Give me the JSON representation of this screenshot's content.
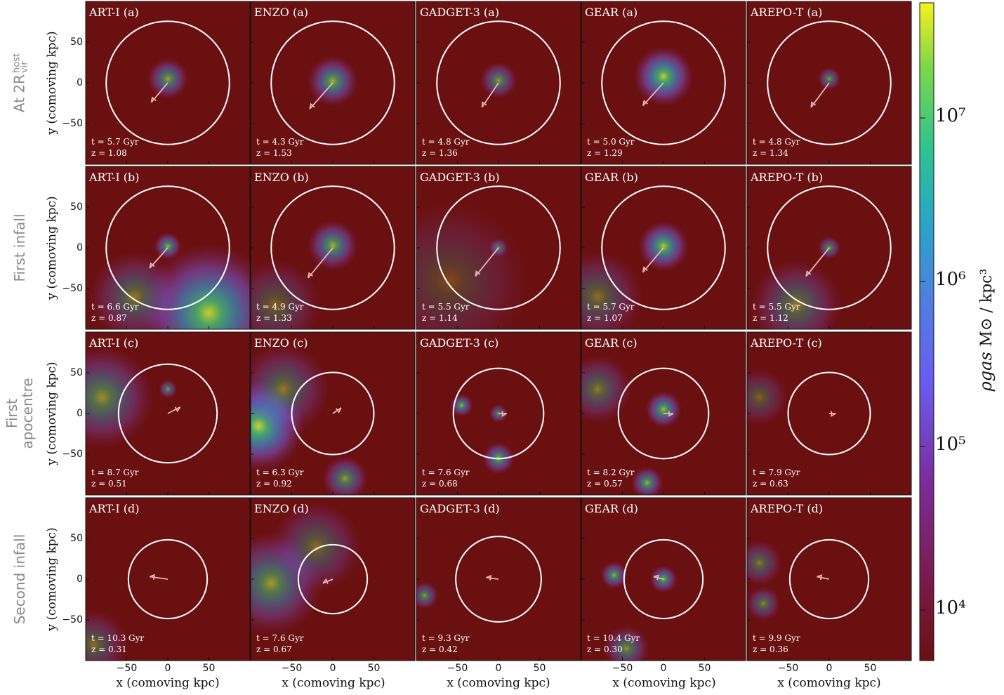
{
  "figure": {
    "codes": [
      "ART-I",
      "ENZO",
      "GADGET-3",
      "GEAR",
      "AREPO-T"
    ],
    "rows": [
      {
        "key": "a",
        "label": "At  2R",
        "label_sup": "host",
        "label_sub": "vir"
      },
      {
        "key": "b",
        "label": "First infall"
      },
      {
        "key": "c",
        "label": "First",
        "label2": "apocentre"
      },
      {
        "key": "d",
        "label": "Second infall"
      }
    ],
    "y_axis_label": "y (comoving kpc)",
    "x_axis_label": "x (comoving kpc)",
    "y_ticks": [
      "50",
      "0",
      "−50"
    ],
    "x_ticks": [
      "−50",
      "0",
      "50"
    ],
    "colorbar": {
      "quantity": "ρgas",
      "units": "M⊙ / kpc³",
      "ticks": [
        "10⁷",
        "10⁶",
        "10⁵",
        "10⁴"
      ],
      "low_color": "#6a1010",
      "high_color": "#f7f320"
    }
  },
  "chart_data": {
    "type": "image-grid",
    "title": "",
    "xlabel": "x (comoving kpc)",
    "ylabel": "y (comoving kpc)",
    "xlim": [
      -100,
      100
    ],
    "ylim": [
      -100,
      100
    ],
    "colorbar_range": [
      3000,
      40000000
    ],
    "colorbar_scale": "log",
    "colorbar_label": "ρgas (M⊙/kpc³)",
    "panels": [
      {
        "label": "ART-I (a)",
        "time": "t = 5.7 Gyr",
        "redshift": "z = 1.08",
        "r_circle": 75,
        "sat": [
          0,
          0
        ],
        "arrow_to": [
          -20,
          -24
        ],
        "blobs": [
          [
            0,
            5,
            18,
            0.65
          ]
        ]
      },
      {
        "label": "ENZO (a)",
        "time": "t = 4.3 Gyr",
        "redshift": "z = 1.53",
        "r_circle": 75,
        "sat": [
          0,
          0
        ],
        "arrow_to": [
          -28,
          -32
        ],
        "blobs": [
          [
            0,
            2,
            22,
            0.7
          ]
        ]
      },
      {
        "label": "GADGET-3 (a)",
        "time": "t = 4.8 Gyr",
        "redshift": "z = 1.36",
        "r_circle": 75,
        "sat": [
          0,
          0
        ],
        "arrow_to": [
          -20,
          -30
        ],
        "blobs": [
          [
            0,
            3,
            16,
            0.6
          ]
        ]
      },
      {
        "label": "GEAR (a)",
        "time": "t = 5.0 Gyr",
        "redshift": "z = 1.29",
        "r_circle": 75,
        "sat": [
          0,
          0
        ],
        "arrow_to": [
          -25,
          -28
        ],
        "blobs": [
          [
            0,
            8,
            26,
            0.85
          ]
        ]
      },
      {
        "label": "AREPO-T (a)",
        "time": "t = 4.8 Gyr",
        "redshift": "z = 1.34",
        "r_circle": 75,
        "sat": [
          0,
          0
        ],
        "arrow_to": [
          -22,
          -30
        ],
        "blobs": [
          [
            0,
            5,
            10,
            0.6
          ]
        ]
      },
      {
        "label": "ART-I (b)",
        "time": "t = 6.6 Gyr",
        "redshift": "z = 0.87",
        "r_circle": 75,
        "sat": [
          0,
          0
        ],
        "arrow_to": [
          -22,
          -25
        ],
        "blobs": [
          [
            0,
            2,
            12,
            0.7
          ],
          [
            50,
            -80,
            60,
            0.85
          ],
          [
            -40,
            -60,
            40,
            0.45
          ]
        ]
      },
      {
        "label": "ENZO (b)",
        "time": "t = 4.9 Gyr",
        "redshift": "z = 1.33",
        "r_circle": 75,
        "sat": [
          0,
          0
        ],
        "arrow_to": [
          -30,
          -37
        ],
        "blobs": [
          [
            0,
            3,
            22,
            0.7
          ],
          [
            -70,
            -70,
            40,
            0.35
          ]
        ]
      },
      {
        "label": "GADGET-3 (b)",
        "time": "t = 5.5 Gyr",
        "redshift": "z = 1.14",
        "r_circle": 75,
        "sat": [
          0,
          0
        ],
        "arrow_to": [
          -28,
          -35
        ],
        "blobs": [
          [
            0,
            0,
            8,
            0.6
          ],
          [
            -60,
            -40,
            70,
            0.25
          ]
        ]
      },
      {
        "label": "GEAR (b)",
        "time": "t = 5.7 Gyr",
        "redshift": "z = 1.07",
        "r_circle": 75,
        "sat": [
          0,
          0
        ],
        "arrow_to": [
          -25,
          -30
        ],
        "blobs": [
          [
            0,
            2,
            22,
            0.8
          ],
          [
            -80,
            -60,
            40,
            0.4
          ]
        ]
      },
      {
        "label": "AREPO-T (b)",
        "time": "t = 5.5 Gyr",
        "redshift": "z = 1.12",
        "r_circle": 75,
        "sat": [
          0,
          0
        ],
        "arrow_to": [
          -28,
          -35
        ],
        "blobs": [
          [
            0,
            0,
            10,
            0.6
          ],
          [
            -40,
            -70,
            40,
            0.45
          ]
        ]
      },
      {
        "label": "ART-I (c)",
        "time": "t = 8.7 Gyr",
        "redshift": "z = 0.51",
        "r_circle": 60,
        "sat": [
          0,
          0
        ],
        "arrow_to": [
          15,
          8
        ],
        "blobs": [
          [
            0,
            30,
            8,
            0.6
          ],
          [
            -80,
            20,
            45,
            0.55
          ]
        ]
      },
      {
        "label": "ENZO (c)",
        "time": "t = 6.3 Gyr",
        "redshift": "z = 0.92",
        "r_circle": 50,
        "sat": [
          0,
          0
        ],
        "arrow_to": [
          10,
          7
        ],
        "blobs": [
          [
            -90,
            -15,
            40,
            0.9
          ],
          [
            15,
            -80,
            20,
            0.6
          ],
          [
            -60,
            30,
            40,
            0.45
          ]
        ]
      },
      {
        "label": "GADGET-3 (c)",
        "time": "t = 7.6 Gyr",
        "redshift": "z = 0.68",
        "r_circle": 55,
        "sat": [
          0,
          0
        ],
        "arrow_to": [
          10,
          0
        ],
        "blobs": [
          [
            -45,
            10,
            10,
            0.7
          ],
          [
            0,
            -55,
            14,
            0.7
          ],
          [
            0,
            0,
            8,
            0.6
          ]
        ]
      },
      {
        "label": "GEAR (c)",
        "time": "t = 8.2 Gyr",
        "redshift": "z = 0.57",
        "r_circle": 55,
        "sat": [
          0,
          0
        ],
        "arrow_to": [
          12,
          0
        ],
        "blobs": [
          [
            0,
            5,
            16,
            0.75
          ],
          [
            -20,
            -85,
            14,
            0.7
          ],
          [
            -80,
            30,
            30,
            0.45
          ]
        ]
      },
      {
        "label": "AREPO-T (c)",
        "time": "t = 7.9 Gyr",
        "redshift": "z = 0.63",
        "r_circle": 50,
        "sat": [
          0,
          0
        ],
        "arrow_to": [
          8,
          0
        ],
        "blobs": [
          [
            -85,
            20,
            25,
            0.35
          ]
        ]
      },
      {
        "label": "ART-I (d)",
        "time": "t = 10.3 Gyr",
        "redshift": "z = 0.31",
        "r_circle": 48,
        "sat": [
          0,
          0
        ],
        "arrow_to": [
          -22,
          3
        ],
        "blobs": [
          [
            -90,
            -80,
            30,
            0.4
          ]
        ]
      },
      {
        "label": "ENZO (d)",
        "time": "t = 7.6 Gyr",
        "redshift": "z = 0.67",
        "r_circle": 42,
        "sat": [
          0,
          0
        ],
        "arrow_to": [
          -12,
          -5
        ],
        "blobs": [
          [
            -75,
            -5,
            45,
            0.6
          ],
          [
            -20,
            40,
            40,
            0.4
          ]
        ]
      },
      {
        "label": "GADGET-3 (d)",
        "time": "t = 9.3 Gyr",
        "redshift": "z = 0.42",
        "r_circle": 52,
        "sat": [
          0,
          0
        ],
        "arrow_to": [
          -15,
          2
        ],
        "blobs": [
          [
            -90,
            -20,
            12,
            0.6
          ]
        ]
      },
      {
        "label": "GEAR (d)",
        "time": "t = 10.4 Gyr",
        "redshift": "z = 0.30",
        "r_circle": 48,
        "sat": [
          0,
          0
        ],
        "arrow_to": [
          -12,
          3
        ],
        "blobs": [
          [
            0,
            0,
            12,
            0.7
          ],
          [
            -60,
            5,
            12,
            0.7
          ],
          [
            -45,
            -85,
            20,
            0.55
          ]
        ]
      },
      {
        "label": "AREPO-T (d)",
        "time": "t = 9.9 Gyr",
        "redshift": "z = 0.36",
        "r_circle": 48,
        "sat": [
          0,
          0
        ],
        "arrow_to": [
          -15,
          3
        ],
        "blobs": [
          [
            -85,
            20,
            20,
            0.45
          ],
          [
            -80,
            -30,
            15,
            0.5
          ]
        ]
      }
    ]
  }
}
